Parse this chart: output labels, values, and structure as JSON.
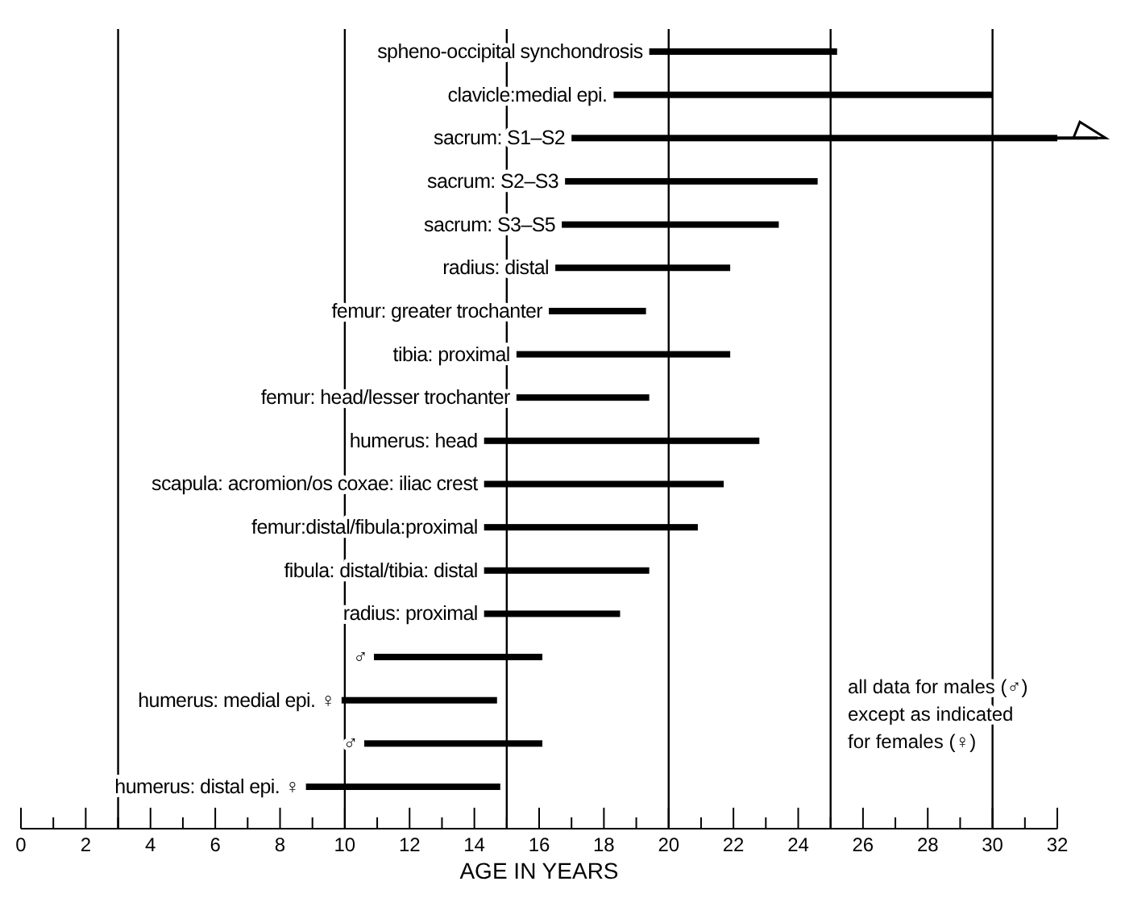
{
  "chart_data": {
    "type": "bar",
    "orientation": "horizontal",
    "xlabel": "AGE IN YEARS",
    "categories": [
      "spheno-occipital synchondrosis",
      "clavicle:medial epi.",
      "sacrum: S1–S2",
      "sacrum: S2–S3",
      "sacrum: S3–S5",
      "radius: distal",
      "femur: greater trochanter",
      "tibia: proximal",
      "femur: head/lesser trochanter",
      "humerus: head",
      "scapula: acromion/os coxae: iliac crest",
      "femur:distal/fibula:proximal",
      "fibula: distal/tibia: distal",
      "radius: proximal",
      "♂",
      "humerus: medial epi. ♀",
      "♂",
      "humerus: distal epi. ♀"
    ],
    "base": [
      19.4,
      18.3,
      17,
      16.8,
      16.7,
      16.5,
      16.3,
      15.3,
      15.3,
      14.3,
      14.3,
      14.3,
      14.3,
      14.3,
      10.9,
      9.9,
      10.6,
      8.8
    ],
    "values": [
      5.8,
      11.7,
      15,
      7.8,
      6.7,
      5.4,
      3,
      6.6,
      4.1,
      8.5,
      7.4,
      6.6,
      5.1,
      4.2,
      5.2,
      4.8,
      5.5,
      6
    ],
    "color": "#000000",
    "xlim": [
      0,
      32
    ],
    "xticks": [
      0,
      {
        "value": 1,
        "label": null
      },
      2,
      {
        "value": 3,
        "label": null
      },
      4,
      {
        "value": 5,
        "label": null
      },
      6,
      {
        "value": 7,
        "label": null
      },
      8,
      {
        "value": 9,
        "label": null
      },
      10,
      {
        "value": 11,
        "label": null
      },
      12,
      {
        "value": 13,
        "label": null
      },
      14,
      {
        "value": 15,
        "label": null
      },
      16,
      {
        "value": 17,
        "label": null
      },
      18,
      {
        "value": 19,
        "label": null
      },
      20,
      {
        "value": 21,
        "label": null
      },
      22,
      {
        "value": 23,
        "label": null
      },
      24,
      {
        "value": 25,
        "label": null
      },
      26,
      {
        "value": 27,
        "label": null
      },
      28,
      {
        "value": 29,
        "label": null
      },
      30,
      {
        "value": 31,
        "label": null
      },
      32
    ],
    "ref_lines": [
      {
        "axis": "x",
        "value": 3
      },
      {
        "axis": "x",
        "value": 10
      },
      {
        "axis": "x",
        "value": 15
      },
      {
        "axis": "x",
        "value": 20
      },
      {
        "axis": "x",
        "value": 25
      },
      {
        "axis": "x",
        "value": 30
      }
    ],
    "annotations": [
      "all data for males (♂)",
      "except as indicated",
      "for females (♀)"
    ],
    "grid": false
  }
}
